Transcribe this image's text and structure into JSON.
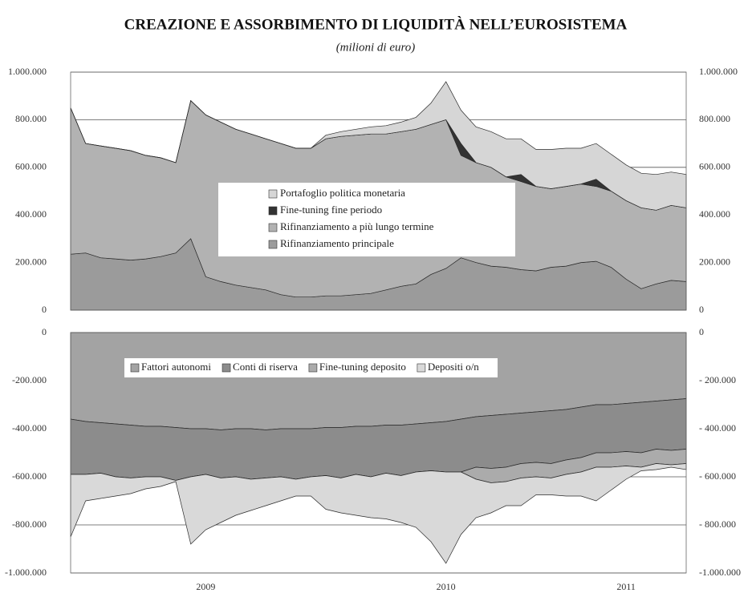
{
  "title": "CREAZIONE E ASSORBIMENTO DI LIQUIDITÀ NELL’EUROSISTEMA",
  "subtitle": "(milioni di euro)",
  "chart_data": [
    {
      "type": "area",
      "stacked": true,
      "grid": true,
      "legend_position": "center",
      "ylim": [
        0,
        1000000
      ],
      "yticks": [
        0,
        {
          "value": 200000,
          "label": "200.000"
        },
        {
          "value": 400000,
          "label": "400.000"
        },
        {
          "value": 600000,
          "label": "600.000"
        },
        {
          "value": 800000,
          "label": "800.000"
        },
        {
          "value": 1000000,
          "label": "1.000.000"
        }
      ],
      "y2lim": [
        0,
        1000000
      ],
      "y2ticks": [
        0,
        {
          "value": 200000,
          "label": "200.000"
        },
        {
          "value": 400000,
          "label": "400.000"
        },
        {
          "value": 600000,
          "label": "600.000"
        },
        {
          "value": 800000,
          "label": "800.000"
        },
        {
          "value": 1000000,
          "label": "1.000.000"
        }
      ],
      "series": [
        {
          "name": "Rifinanziamento principale",
          "color": "#9b9b9b",
          "values": [
            235000,
            240000,
            220000,
            215000,
            210000,
            215000,
            225000,
            240000,
            300000,
            140000,
            120000,
            105000,
            95000,
            85000,
            65000,
            55000,
            55000,
            60000,
            60000,
            65000,
            70000,
            85000,
            100000,
            110000,
            150000,
            175000,
            220000,
            200000,
            185000,
            180000,
            170000,
            165000,
            180000,
            185000,
            200000,
            205000,
            180000,
            130000,
            90000,
            110000,
            125000,
            120000
          ]
        },
        {
          "name": "Rifinanziamento a più lungo termine",
          "color": "#b2b2b2",
          "values": [
            615000,
            460000,
            470000,
            465000,
            460000,
            435000,
            415000,
            380000,
            580000,
            680000,
            670000,
            655000,
            645000,
            635000,
            635000,
            625000,
            625000,
            660000,
            670000,
            670000,
            670000,
            655000,
            650000,
            650000,
            630000,
            625000,
            430000,
            420000,
            415000,
            380000,
            370000,
            355000,
            330000,
            335000,
            330000,
            315000,
            320000,
            330000,
            340000,
            310000,
            315000,
            310000
          ]
        },
        {
          "name": "Fine-tuning fine periodo",
          "color": "#333333",
          "values": [
            0,
            0,
            0,
            0,
            0,
            0,
            0,
            0,
            0,
            0,
            0,
            0,
            0,
            0,
            0,
            0,
            0,
            0,
            0,
            0,
            0,
            0,
            0,
            0,
            0,
            0,
            50000,
            0,
            0,
            0,
            30000,
            0,
            0,
            0,
            0,
            30000,
            0,
            0,
            0,
            0,
            0,
            0
          ]
        },
        {
          "name": "Portafoglio politica monetaria",
          "color": "#d6d6d6",
          "values": [
            0,
            0,
            0,
            0,
            0,
            0,
            0,
            0,
            0,
            0,
            0,
            0,
            0,
            0,
            0,
            0,
            0,
            15000,
            20000,
            25000,
            30000,
            35000,
            40000,
            50000,
            90000,
            160000,
            140000,
            150000,
            150000,
            160000,
            150000,
            155000,
            165000,
            160000,
            150000,
            150000,
            155000,
            150000,
            145000,
            150000,
            140000,
            140000
          ]
        }
      ]
    },
    {
      "type": "area",
      "stacked": true,
      "grid": true,
      "legend_position": "top",
      "categories": [
        null,
        null,
        null,
        null,
        null,
        null,
        null,
        null,
        null,
        "2009",
        null,
        null,
        null,
        null,
        null,
        null,
        null,
        null,
        null,
        null,
        null,
        null,
        null,
        null,
        null,
        "2010",
        null,
        null,
        null,
        null,
        null,
        null,
        null,
        null,
        null,
        null,
        null,
        "2011",
        null,
        null,
        null,
        null
      ],
      "ylim": [
        -1000000,
        0
      ],
      "yticks": [
        {
          "value": -1000000,
          "label": "-1.000.000"
        },
        {
          "value": -800000,
          "label": "-800.000"
        },
        {
          "value": -600000,
          "label": "-600.000"
        },
        {
          "value": -400000,
          "label": "-400.000"
        },
        {
          "value": -200000,
          "label": "-200.000"
        },
        0
      ],
      "y2lim": [
        -1000000,
        0
      ],
      "y2ticks": [
        {
          "value": -1000000,
          "label": "-1.000.000"
        },
        {
          "value": -800000,
          "label": "- 800.000"
        },
        {
          "value": -600000,
          "label": "- 600.000"
        },
        {
          "value": -400000,
          "label": "- 400.000"
        },
        {
          "value": -200000,
          "label": "- 200.000"
        },
        0
      ],
      "series": [
        {
          "name": "Fattori autonomi",
          "color": "#a3a3a3",
          "values": [
            -360000,
            -370000,
            -375000,
            -380000,
            -385000,
            -390000,
            -390000,
            -395000,
            -400000,
            -400000,
            -405000,
            -400000,
            -400000,
            -405000,
            -400000,
            -400000,
            -400000,
            -395000,
            -395000,
            -390000,
            -390000,
            -385000,
            -385000,
            -380000,
            -375000,
            -370000,
            -360000,
            -350000,
            -345000,
            -340000,
            -335000,
            -330000,
            -325000,
            -320000,
            -310000,
            -300000,
            -300000,
            -295000,
            -290000,
            -285000,
            -280000,
            -275000
          ]
        },
        {
          "name": "Conti di riserva",
          "color": "#8c8c8c",
          "values": [
            -230000,
            -220000,
            -210000,
            -220000,
            -220000,
            -210000,
            -210000,
            -220000,
            -200000,
            -190000,
            -200000,
            -200000,
            -210000,
            -200000,
            -200000,
            -210000,
            -200000,
            -200000,
            -210000,
            -200000,
            -210000,
            -200000,
            -210000,
            -200000,
            -200000,
            -210000,
            -220000,
            -210000,
            -220000,
            -220000,
            -210000,
            -210000,
            -220000,
            -210000,
            -210000,
            -200000,
            -200000,
            -200000,
            -210000,
            -200000,
            -210000,
            -210000
          ]
        },
        {
          "name": "Fine-tuning deposito",
          "color": "#ababab",
          "values": [
            0,
            0,
            0,
            0,
            0,
            0,
            0,
            0,
            0,
            0,
            0,
            0,
            0,
            0,
            0,
            0,
            0,
            0,
            0,
            0,
            0,
            0,
            0,
            0,
            0,
            0,
            0,
            -50000,
            -60000,
            -60000,
            -60000,
            -60000,
            -60000,
            -60000,
            -60000,
            -60000,
            -60000,
            -60000,
            -60000,
            -60000,
            -60000,
            -60000
          ]
        },
        {
          "name": "Depositi o/n",
          "color": "#d9d9d9",
          "values": [
            -260000,
            -110000,
            -105000,
            -80000,
            -65000,
            -50000,
            -40000,
            -5000,
            -280000,
            -230000,
            -185000,
            -160000,
            -130000,
            -115000,
            -100000,
            -70000,
            -80000,
            -140000,
            -145000,
            -170000,
            -170000,
            -190000,
            -195000,
            -230000,
            -295000,
            -380000,
            -260000,
            -160000,
            -125000,
            -100000,
            -115000,
            -75000,
            -70000,
            -90000,
            -100000,
            -140000,
            -95000,
            -55000,
            -15000,
            -25000,
            -10000,
            -25000
          ]
        }
      ]
    }
  ]
}
